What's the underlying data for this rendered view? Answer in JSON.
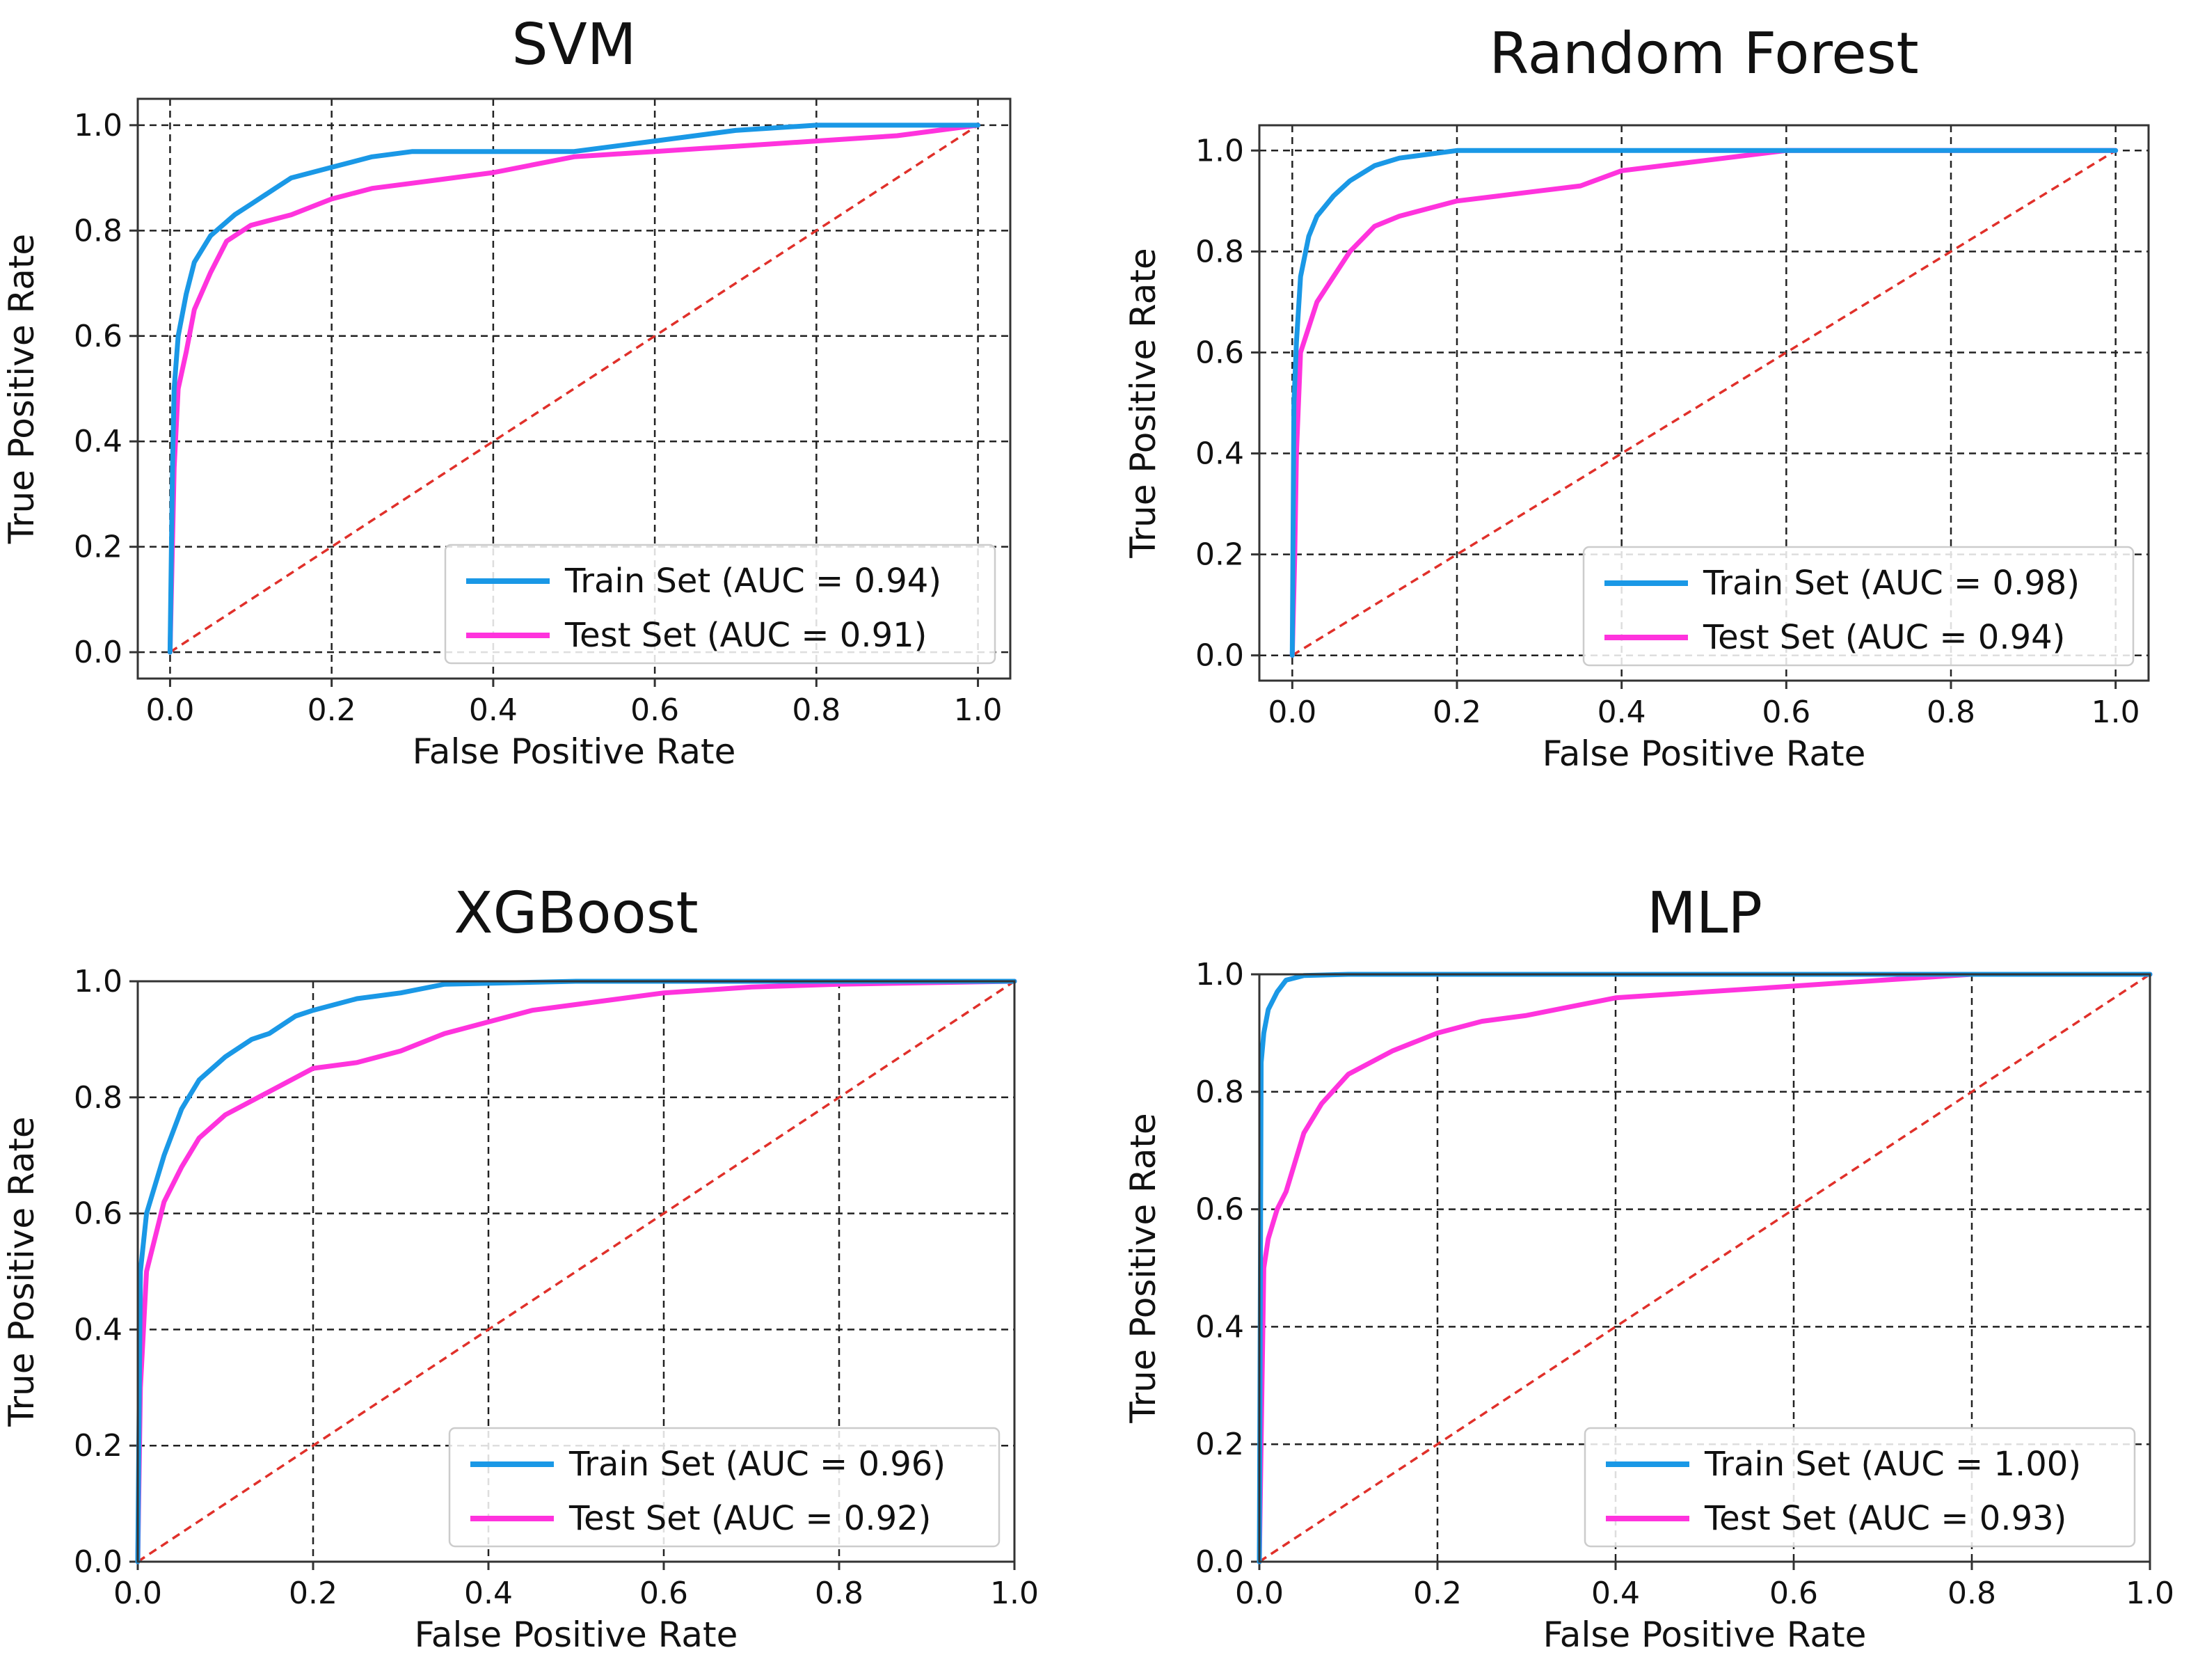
{
  "colors": {
    "train": "#1a98e6",
    "test": "#ff33dd",
    "diagonal": "#e0302a"
  },
  "chart_data": [
    {
      "type": "line",
      "title": "SVM",
      "xlabel": "False Positive Rate",
      "ylabel": "True Positive Rate",
      "xlim": [
        0,
        1
      ],
      "ylim": [
        0,
        1
      ],
      "xticks": [
        "0.0",
        "0.2",
        "0.4",
        "0.6",
        "0.8",
        "1.0"
      ],
      "yticks": [
        "0.0",
        "0.2",
        "0.4",
        "0.6",
        "0.8",
        "1.0"
      ],
      "grid": true,
      "legend_position": "lower-right",
      "series": [
        {
          "name": "Train Set (AUC = 0.94)",
          "x": [
            0,
            0.003,
            0.005,
            0.01,
            0.02,
            0.03,
            0.05,
            0.08,
            0.1,
            0.13,
            0.15,
            0.2,
            0.25,
            0.3,
            0.4,
            0.5,
            0.6,
            0.7,
            0.8,
            0.9,
            1
          ],
          "y": [
            0,
            0.35,
            0.5,
            0.6,
            0.68,
            0.74,
            0.79,
            0.83,
            0.85,
            0.88,
            0.9,
            0.92,
            0.94,
            0.95,
            0.95,
            0.95,
            0.97,
            0.99,
            1,
            1,
            1
          ]
        },
        {
          "name": "Test Set (AUC = 0.91)",
          "x": [
            0,
            0.005,
            0.01,
            0.02,
            0.03,
            0.05,
            0.07,
            0.1,
            0.15,
            0.2,
            0.25,
            0.3,
            0.4,
            0.5,
            0.6,
            0.7,
            0.8,
            0.9,
            1
          ],
          "y": [
            0,
            0.35,
            0.5,
            0.57,
            0.65,
            0.72,
            0.78,
            0.81,
            0.83,
            0.86,
            0.88,
            0.89,
            0.91,
            0.94,
            0.95,
            0.96,
            0.97,
            0.98,
            1
          ]
        },
        {
          "name": "Chance",
          "x": [
            0,
            1
          ],
          "y": [
            0,
            1
          ]
        }
      ]
    },
    {
      "type": "line",
      "title": "Random Forest",
      "xlabel": "False Positive Rate",
      "ylabel": "True Positive Rate",
      "xlim": [
        0,
        1
      ],
      "ylim": [
        0,
        1
      ],
      "xticks": [
        "0.0",
        "0.2",
        "0.4",
        "0.6",
        "0.8",
        "1.0"
      ],
      "yticks": [
        "0.0",
        "0.2",
        "0.4",
        "0.6",
        "0.8",
        "1.0"
      ],
      "grid": true,
      "legend_position": "lower-right",
      "series": [
        {
          "name": "Train Set (AUC = 0.98)",
          "x": [
            0,
            0.002,
            0.005,
            0.01,
            0.02,
            0.03,
            0.05,
            0.07,
            0.1,
            0.13,
            0.2,
            0.3,
            0.5,
            0.7,
            1
          ],
          "y": [
            0,
            0.5,
            0.62,
            0.75,
            0.83,
            0.87,
            0.91,
            0.94,
            0.97,
            0.985,
            1,
            1,
            1,
            1,
            1
          ]
        },
        {
          "name": "Test Set (AUC = 0.94)",
          "x": [
            0,
            0.003,
            0.005,
            0.01,
            0.02,
            0.03,
            0.05,
            0.07,
            0.1,
            0.13,
            0.2,
            0.25,
            0.3,
            0.35,
            0.4,
            0.45,
            0.5,
            0.55,
            0.6,
            0.8,
            1
          ],
          "y": [
            0,
            0.2,
            0.4,
            0.6,
            0.65,
            0.7,
            0.75,
            0.8,
            0.85,
            0.87,
            0.9,
            0.91,
            0.92,
            0.93,
            0.96,
            0.97,
            0.98,
            0.99,
            1,
            1,
            1
          ]
        },
        {
          "name": "Chance",
          "x": [
            0,
            1
          ],
          "y": [
            0,
            1
          ]
        }
      ]
    },
    {
      "type": "line",
      "title": "XGBoost",
      "xlabel": "False Positive Rate",
      "ylabel": "True Positive Rate",
      "xlim": [
        0,
        1
      ],
      "ylim": [
        0,
        1
      ],
      "xticks": [
        "0.0",
        "0.2",
        "0.4",
        "0.6",
        "0.8",
        "1.0"
      ],
      "yticks": [
        "0.0",
        "0.2",
        "0.4",
        "0.6",
        "0.8",
        "1.0"
      ],
      "grid": true,
      "legend_position": "lower-right",
      "series": [
        {
          "name": "Train Set (AUC = 0.96)",
          "x": [
            0,
            0.003,
            0.01,
            0.02,
            0.03,
            0.05,
            0.07,
            0.1,
            0.13,
            0.15,
            0.18,
            0.2,
            0.25,
            0.3,
            0.35,
            0.5,
            0.7,
            1
          ],
          "y": [
            0,
            0.5,
            0.6,
            0.65,
            0.7,
            0.78,
            0.83,
            0.87,
            0.9,
            0.91,
            0.94,
            0.95,
            0.97,
            0.98,
            0.995,
            1,
            1,
            1
          ]
        },
        {
          "name": "Test Set (AUC = 0.92)",
          "x": [
            0,
            0.003,
            0.01,
            0.02,
            0.03,
            0.05,
            0.07,
            0.1,
            0.15,
            0.2,
            0.25,
            0.3,
            0.35,
            0.4,
            0.45,
            0.5,
            0.6,
            0.7,
            0.8,
            1
          ],
          "y": [
            0,
            0.3,
            0.5,
            0.56,
            0.62,
            0.68,
            0.73,
            0.77,
            0.81,
            0.85,
            0.86,
            0.88,
            0.91,
            0.93,
            0.95,
            0.96,
            0.98,
            0.99,
            0.995,
            1
          ]
        },
        {
          "name": "Chance",
          "x": [
            0,
            1
          ],
          "y": [
            0,
            1
          ]
        }
      ]
    },
    {
      "type": "line",
      "title": "MLP",
      "xlabel": "False Positive Rate",
      "ylabel": "True Positive Rate",
      "xlim": [
        0,
        1
      ],
      "ylim": [
        0,
        1
      ],
      "xticks": [
        "0.0",
        "0.2",
        "0.4",
        "0.6",
        "0.8",
        "1.0"
      ],
      "yticks": [
        "0.0",
        "0.2",
        "0.4",
        "0.6",
        "0.8",
        "1.0"
      ],
      "grid": true,
      "legend_position": "lower-right",
      "series": [
        {
          "name": "Train Set (AUC = 1.00)",
          "x": [
            0,
            0.002,
            0.005,
            0.01,
            0.02,
            0.03,
            0.05,
            0.1,
            0.3,
            1
          ],
          "y": [
            0,
            0.85,
            0.9,
            0.94,
            0.97,
            0.99,
            0.998,
            1,
            1,
            1
          ]
        },
        {
          "name": "Test Set (AUC = 0.93)",
          "x": [
            0,
            0.003,
            0.005,
            0.01,
            0.02,
            0.03,
            0.05,
            0.07,
            0.1,
            0.15,
            0.2,
            0.25,
            0.3,
            0.4,
            0.5,
            0.6,
            0.7,
            0.8,
            1
          ],
          "y": [
            0,
            0.3,
            0.5,
            0.55,
            0.6,
            0.63,
            0.73,
            0.78,
            0.83,
            0.87,
            0.9,
            0.92,
            0.93,
            0.96,
            0.97,
            0.98,
            0.99,
            1,
            1
          ]
        },
        {
          "name": "Chance",
          "x": [
            0,
            1
          ],
          "y": [
            0,
            1
          ]
        }
      ]
    }
  ]
}
